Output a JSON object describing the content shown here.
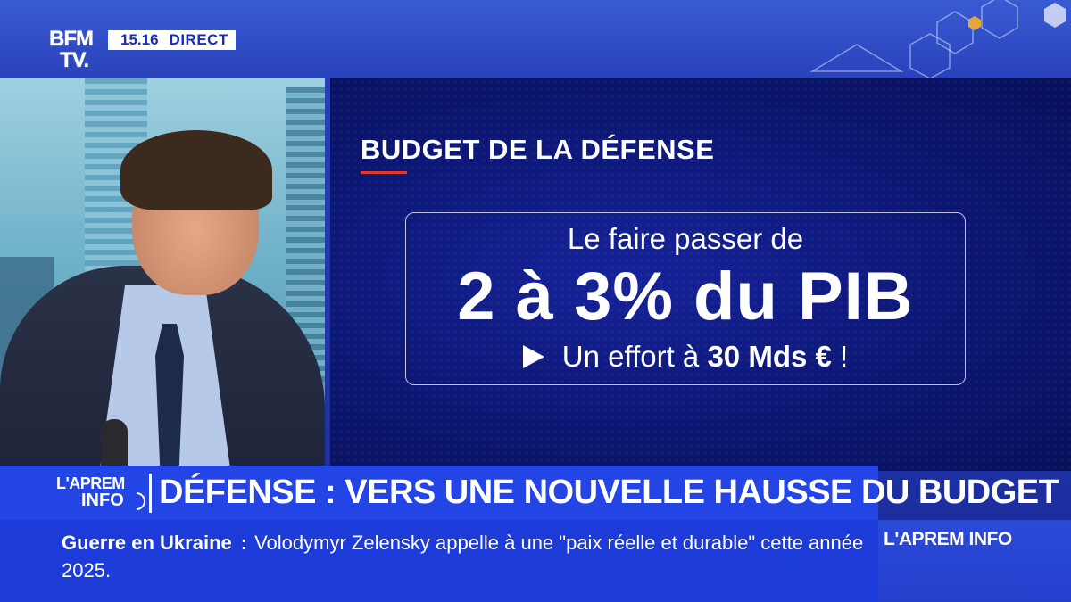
{
  "channel": {
    "logo_line1": "BFM",
    "logo_line2": "TV.",
    "time": "15.16",
    "live_label": "DIRECT"
  },
  "graphic": {
    "title": "BUDGET DE LA DÉFENSE",
    "line1": "Le faire passer de",
    "line2": "2 à 3% du PIB",
    "line3_prefix": "Un effort à ",
    "line3_bold": "30 Mds €",
    "line3_suffix": " !"
  },
  "show": {
    "logo_top": "L'APREM",
    "logo_bottom": "INFO"
  },
  "headline": "DÉFENSE : VERS UNE NOUVELLE HAUSSE DU BUDGET",
  "ticker": {
    "topic": "Guerre en Ukraine",
    "separator": ":",
    "text": "Volodymyr Zelensky appelle à une \"paix réelle et durable\" cette année 2025."
  },
  "brand_label": "L'APREM INFO",
  "colors": {
    "accent_red": "#e23a2a",
    "band_blue": "#2345e6",
    "ticker_blue": "#1c3bd8"
  }
}
